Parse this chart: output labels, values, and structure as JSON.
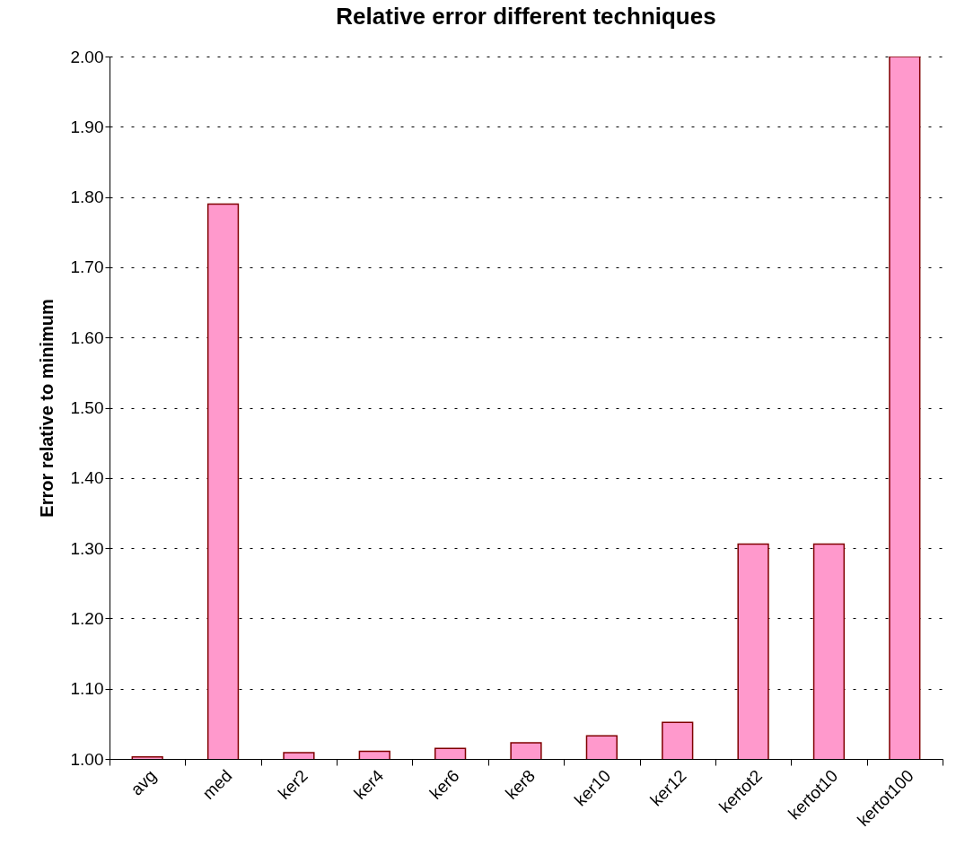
{
  "chart_data": {
    "type": "bar",
    "title": "Relative error different techniques",
    "ylabel": "Error relative to minimum",
    "categories": [
      "avg",
      "med",
      "ker2",
      "ker4",
      "ker6",
      "ker8",
      "ker10",
      "ker12",
      "kertot2",
      "kertot10",
      "kertot100"
    ],
    "values": [
      1.003,
      1.79,
      1.009,
      1.011,
      1.015,
      1.023,
      1.033,
      1.052,
      1.306,
      1.306,
      2.0
    ],
    "color": "#ff99cc",
    "ylim": [
      1.0,
      2.0
    ],
    "yticks": [
      {
        "value": 1.0,
        "label": "1.00"
      },
      {
        "value": 1.1,
        "label": "1.10"
      },
      {
        "value": 1.2,
        "label": "1.20"
      },
      {
        "value": 1.3,
        "label": "1.30"
      },
      {
        "value": 1.4,
        "label": "1.40"
      },
      {
        "value": 1.5,
        "label": "1.50"
      },
      {
        "value": 1.6,
        "label": "1.60"
      },
      {
        "value": 1.7,
        "label": "1.70"
      },
      {
        "value": 1.8,
        "label": "1.80"
      },
      {
        "value": 1.9,
        "label": "1.90"
      },
      {
        "value": 2.0,
        "label": "2.00"
      }
    ],
    "grid": "y"
  }
}
